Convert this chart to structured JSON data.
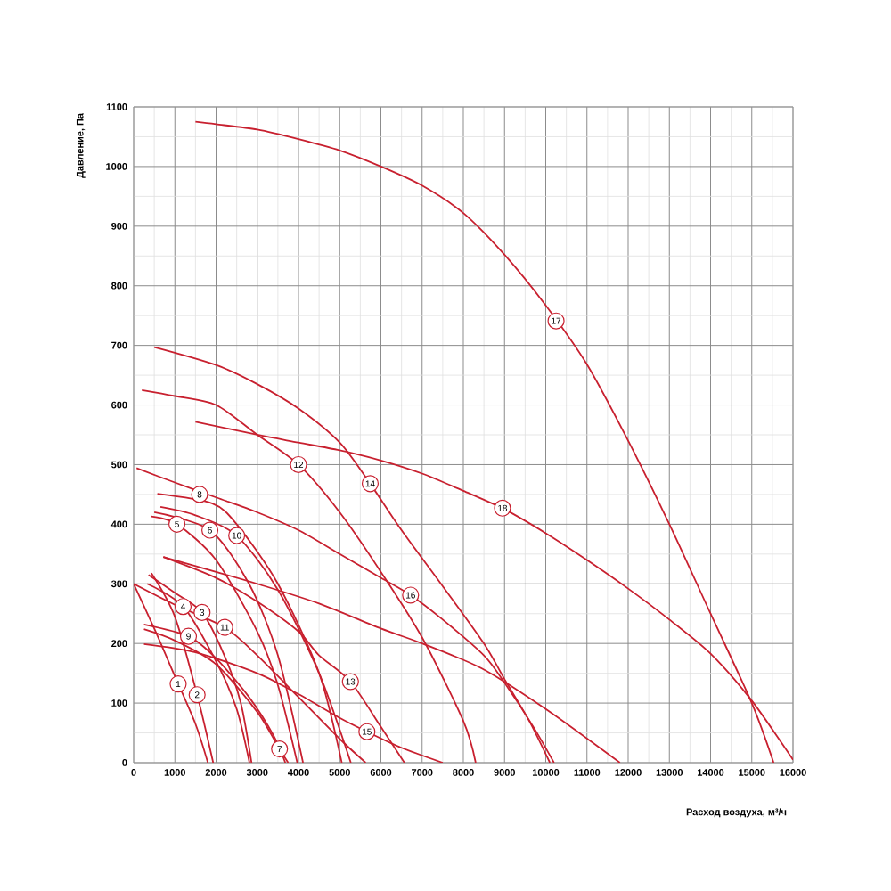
{
  "chart_data": {
    "type": "line",
    "xlabel": "Расход воздуха, м³/ч",
    "ylabel": "Давление, Па",
    "xlim": [
      0,
      16000
    ],
    "ylim": [
      0,
      1100
    ],
    "xticks": [
      0,
      1000,
      2000,
      3000,
      4000,
      5000,
      6000,
      7000,
      8000,
      9000,
      10000,
      11000,
      12000,
      13000,
      14000,
      15000,
      16000
    ],
    "yticks": [
      0,
      100,
      200,
      300,
      400,
      500,
      600,
      700,
      800,
      900,
      1000,
      1100
    ],
    "grid": true,
    "series": [
      {
        "color": "#c8202f",
        "x": [
          0,
          500,
          1000,
          1500,
          1800
        ],
        "values": [
          300,
          225,
          145,
          65,
          0
        ]
      },
      {
        "color": "#c8202f",
        "x": [
          430,
          1000,
          1540,
          1930
        ],
        "values": [
          318,
          245,
          114,
          0
        ]
      },
      {
        "color": "#c8202f",
        "x": [
          360,
          1000,
          1660,
          2200,
          2600,
          2860
        ],
        "values": [
          315,
          285,
          252,
          180,
          100,
          0
        ]
      },
      {
        "color": "#c8202f",
        "x": [
          330,
          1200,
          2000,
          2500,
          2810
        ],
        "values": [
          300,
          262,
          170,
          90,
          0
        ]
      },
      {
        "color": "#c8202f",
        "x": [
          430,
          1050,
          2000,
          3000,
          3500,
          3970
        ],
        "values": [
          413,
          400,
          340,
          220,
          130,
          0
        ]
      },
      {
        "color": "#c8202f",
        "x": [
          500,
          1850,
          2800,
          3500,
          4110
        ],
        "values": [
          420,
          390,
          300,
          180,
          0
        ]
      },
      {
        "color": "#c8202f",
        "x": [
          250,
          1000,
          2000,
          3000,
          3540,
          3750
        ],
        "values": [
          224,
          205,
          165,
          85,
          23,
          0
        ]
      },
      {
        "color": "#c8202f",
        "x": [
          575,
          1900,
          2500,
          3500,
          4500,
          5050
        ],
        "values": [
          451,
          435,
          400,
          300,
          150,
          0
        ]
      },
      {
        "color": "#c8202f",
        "x": [
          250,
          1330,
          2000,
          2800,
          3400,
          3680
        ],
        "values": [
          232,
          212,
          175,
          110,
          45,
          0
        ]
      },
      {
        "color": "#c8202f",
        "x": [
          650,
          1500,
          2500,
          3500,
          4500,
          5270
        ],
        "values": [
          429,
          415,
          381,
          290,
          150,
          0
        ]
      },
      {
        "color": "#c8202f",
        "x": [
          0,
          1000,
          2210,
          3000,
          4000,
          5000,
          5630
        ],
        "values": [
          300,
          265,
          227,
          180,
          110,
          40,
          0
        ]
      },
      {
        "color": "#c8202f",
        "x": [
          200,
          1000,
          2000,
          3000,
          4000,
          5000,
          6000,
          7000,
          8000,
          8300
        ],
        "values": [
          625,
          615,
          600,
          550,
          500,
          420,
          320,
          210,
          70,
          0
        ]
      },
      {
        "color": "#c8202f",
        "x": [
          720,
          2000,
          3000,
          4000,
          4500,
          5260,
          6000,
          6570
        ],
        "values": [
          345,
          310,
          270,
          220,
          180,
          136,
          60,
          0
        ]
      },
      {
        "color": "#c8202f",
        "x": [
          500,
          2000,
          3000,
          4000,
          5000,
          5740,
          6500,
          7500,
          8500,
          9000,
          9600,
          10100
        ],
        "values": [
          697,
          667,
          635,
          594,
          537,
          468,
          390,
          296,
          200,
          140,
          70,
          0
        ]
      },
      {
        "color": "#c8202f",
        "x": [
          250,
          1500,
          3000,
          4000,
          5000,
          5660,
          6500,
          7500
        ],
        "values": [
          199,
          185,
          150,
          115,
          75,
          52,
          25,
          0
        ]
      },
      {
        "color": "#c8202f",
        "x": [
          70,
          1000,
          2000,
          3000,
          4000,
          5000,
          6000,
          6720,
          7500,
          8500,
          9000,
          9700,
          10200
        ],
        "values": [
          494,
          470,
          445,
          420,
          390,
          350,
          310,
          281,
          240,
          180,
          134,
          60,
          0
        ]
      },
      {
        "color": "#c8202f",
        "x": [
          1500,
          2000,
          3000,
          4000,
          5000,
          6000,
          7000,
          8000,
          9000,
          10000,
          11000,
          12000,
          13000,
          14000,
          15000,
          15530
        ],
        "values": [
          1075,
          1071,
          1062,
          1046,
          1027,
          1000,
          968,
          922,
          852,
          767,
          668,
          540,
          400,
          250,
          100,
          0
        ]
      },
      {
        "color": "#c8202f",
        "x": [
          1500,
          3000,
          4000,
          5000,
          6000,
          7000,
          8000,
          9000,
          10000,
          11000,
          12000,
          13000,
          14000,
          15000,
          16000
        ],
        "values": [
          572,
          550,
          537,
          524,
          507,
          485,
          456,
          425,
          385,
          340,
          292,
          240,
          183,
          104,
          5
        ]
      },
      {
        "color": "#c8202f",
        "x": [
          720,
          2000,
          3000,
          4500,
          6000,
          7000,
          8450,
          10000,
          11800
        ],
        "values": [
          345,
          320,
          300,
          267,
          225,
          200,
          158,
          90,
          0
        ]
      }
    ],
    "annotations": [
      {
        "text": "1",
        "x": 1080,
        "y": 132
      },
      {
        "text": "2",
        "x": 1540,
        "y": 114
      },
      {
        "text": "3",
        "x": 1660,
        "y": 252
      },
      {
        "text": "4",
        "x": 1200,
        "y": 262
      },
      {
        "text": "5",
        "x": 1050,
        "y": 400
      },
      {
        "text": "6",
        "x": 1850,
        "y": 390
      },
      {
        "text": "7",
        "x": 3540,
        "y": 23
      },
      {
        "text": "8",
        "x": 1600,
        "y": 450
      },
      {
        "text": "9",
        "x": 1330,
        "y": 212
      },
      {
        "text": "10",
        "x": 2500,
        "y": 381
      },
      {
        "text": "11",
        "x": 2210,
        "y": 227
      },
      {
        "text": "12",
        "x": 4000,
        "y": 500
      },
      {
        "text": "13",
        "x": 5260,
        "y": 136
      },
      {
        "text": "14",
        "x": 5740,
        "y": 468
      },
      {
        "text": "15",
        "x": 5660,
        "y": 52
      },
      {
        "text": "16",
        "x": 6720,
        "y": 281
      },
      {
        "text": "17",
        "x": 10250,
        "y": 741
      },
      {
        "text": "18",
        "x": 8950,
        "y": 427
      }
    ]
  }
}
